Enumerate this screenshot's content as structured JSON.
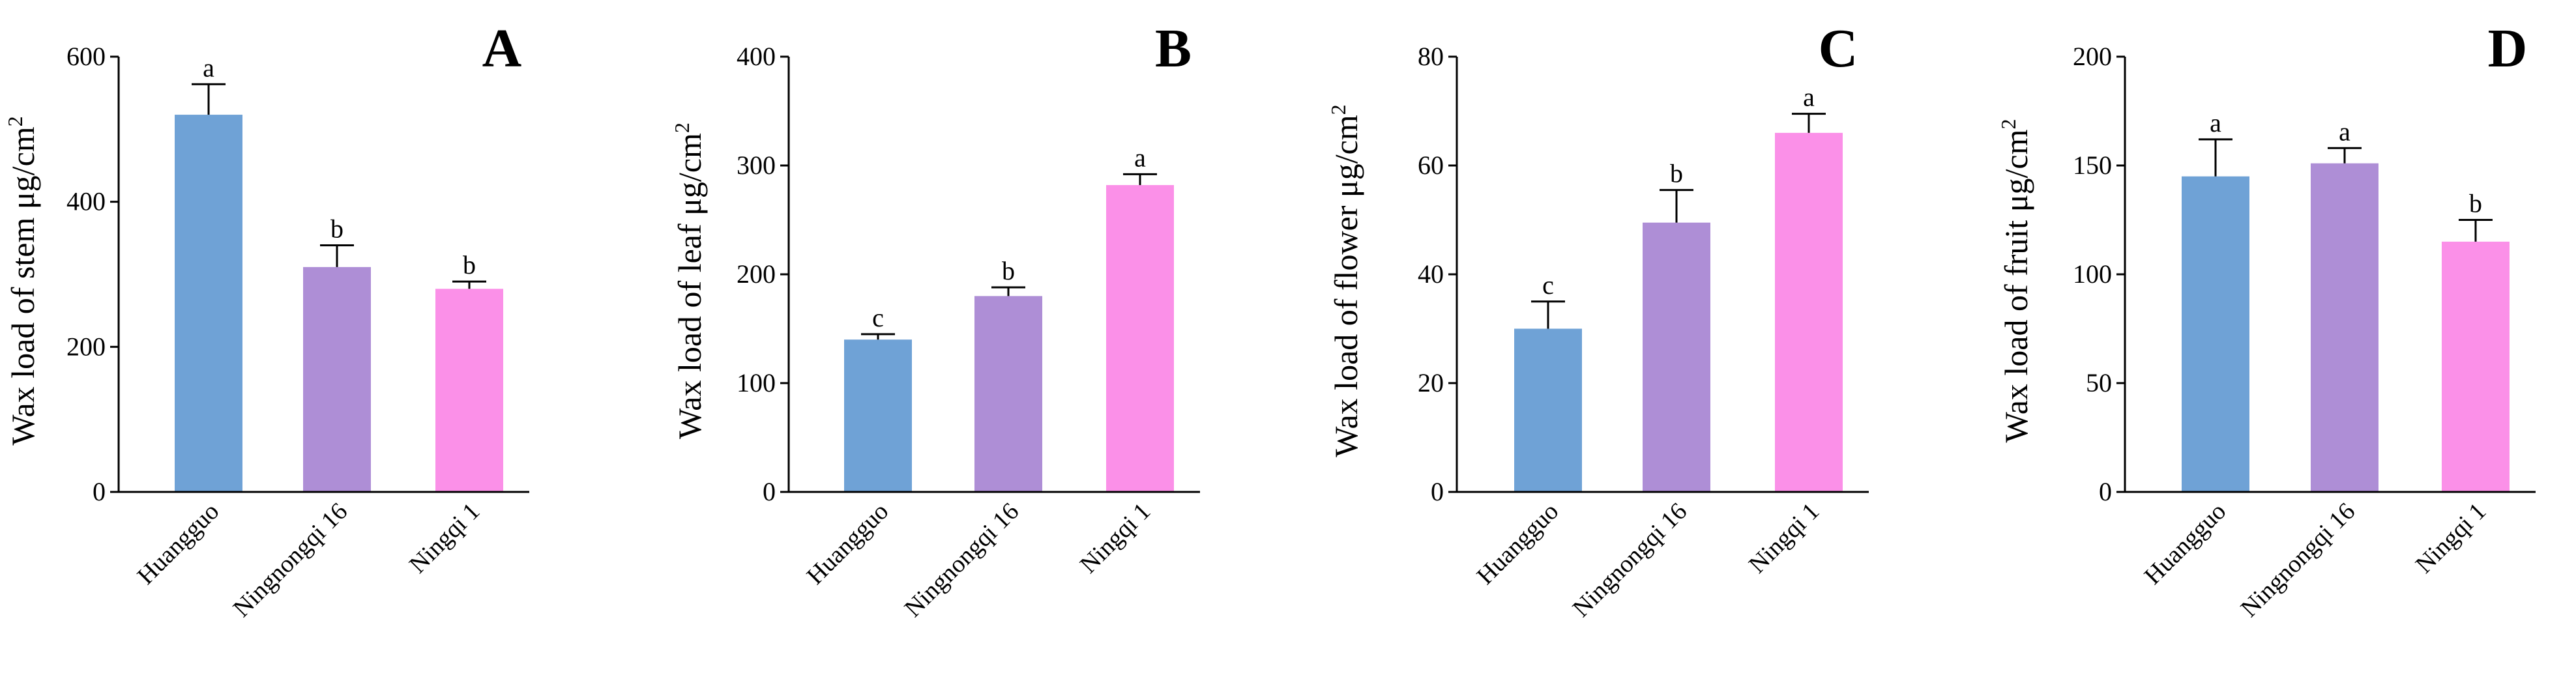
{
  "colors": {
    "Huangguo": "#6fa2d6",
    "Ningnongqi 16": "#ae8ed6",
    "Ningqi 1": "#fb90e8",
    "axis": "#000000"
  },
  "chart_data": [
    {
      "type": "bar",
      "panel_label": "A",
      "categories": [
        "Huangguo",
        "Ningnongqi 16",
        "Ningqi 1"
      ],
      "values": [
        520,
        310,
        280
      ],
      "errors": [
        42,
        30,
        10
      ],
      "significance": [
        "a",
        "b",
        "b"
      ],
      "ylabel": "Wax load of stem μg/cm",
      "ylabel_sup": "2",
      "ylim": [
        0,
        600
      ],
      "yticks": [
        "0",
        "200",
        "400",
        "600"
      ],
      "grid": false
    },
    {
      "type": "bar",
      "panel_label": "B",
      "categories": [
        "Huangguo",
        "Ningnongqi 16",
        "Ningqi 1"
      ],
      "values": [
        140,
        180,
        282
      ],
      "errors": [
        5,
        8,
        10
      ],
      "significance": [
        "c",
        "b",
        "a"
      ],
      "ylabel": "Wax load of leaf μg/cm",
      "ylabel_sup": "2",
      "ylim": [
        0,
        400
      ],
      "yticks": [
        "0",
        "100",
        "200",
        "300",
        "400"
      ],
      "grid": false
    },
    {
      "type": "bar",
      "panel_label": "C",
      "categories": [
        "Huangguo",
        "Ningnongqi 16",
        "Ningqi 1"
      ],
      "values": [
        30,
        49.5,
        66
      ],
      "errors": [
        5,
        6,
        3.5
      ],
      "significance": [
        "c",
        "b",
        "a"
      ],
      "ylabel": "Wax load of flower μg/cm",
      "ylabel_sup": "2",
      "ylim": [
        0,
        80
      ],
      "yticks": [
        "0",
        "20",
        "40",
        "60",
        "80"
      ],
      "grid": false
    },
    {
      "type": "bar",
      "panel_label": "D",
      "categories": [
        "Huangguo",
        "Ningnongqi 16",
        "Ningqi 1"
      ],
      "values": [
        145,
        151,
        115
      ],
      "errors": [
        17,
        7,
        10
      ],
      "significance": [
        "a",
        "a",
        "b"
      ],
      "ylabel": "Wax load of fruit μg/cm",
      "ylabel_sup": "2",
      "ylim": [
        0,
        200
      ],
      "yticks": [
        "0",
        "50",
        "100",
        "150",
        "200"
      ],
      "grid": false
    }
  ]
}
